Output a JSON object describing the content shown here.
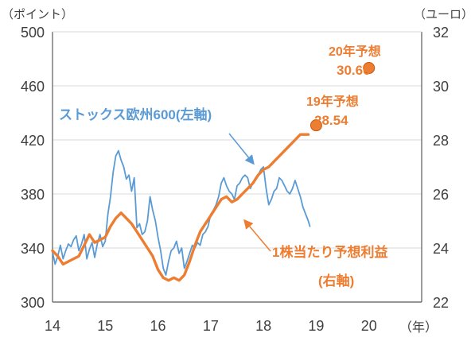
{
  "chart_data": {
    "type": "line",
    "left_unit": "（ポイント）",
    "right_unit": "（ユーロ）",
    "x_unit": "（年）",
    "x_ticks": [
      "14",
      "15",
      "16",
      "17",
      "18",
      "19",
      "20"
    ],
    "x_range": [
      2014,
      2021
    ],
    "y_left": {
      "range": [
        300,
        500
      ],
      "ticks": [
        "300",
        "340",
        "380",
        "420",
        "460",
        "500"
      ]
    },
    "y_right": {
      "range": [
        22,
        32
      ],
      "ticks": [
        "22",
        "24",
        "26",
        "28",
        "30",
        "32"
      ]
    },
    "grid": true,
    "colors": {
      "index": "#5b9bd5",
      "eps": "#ed7d31",
      "axis": "#595959",
      "grid": "#d9d9d9"
    },
    "series": [
      {
        "name": "ストックス欧州600(左軸)",
        "axis": "left",
        "x": [
          2014.0,
          2014.05,
          2014.1,
          2014.15,
          2014.2,
          2014.25,
          2014.3,
          2014.35,
          2014.4,
          2014.45,
          2014.5,
          2014.55,
          2014.6,
          2014.65,
          2014.7,
          2014.75,
          2014.8,
          2014.85,
          2014.9,
          2014.95,
          2015.0,
          2015.05,
          2015.1,
          2015.15,
          2015.2,
          2015.25,
          2015.3,
          2015.35,
          2015.4,
          2015.45,
          2015.5,
          2015.55,
          2015.6,
          2015.65,
          2015.7,
          2015.75,
          2015.8,
          2015.85,
          2015.9,
          2015.95,
          2016.0,
          2016.05,
          2016.1,
          2016.15,
          2016.2,
          2016.25,
          2016.3,
          2016.35,
          2016.4,
          2016.45,
          2016.5,
          2016.55,
          2016.6,
          2016.65,
          2016.7,
          2016.75,
          2016.8,
          2016.85,
          2016.9,
          2016.95,
          2017.0,
          2017.05,
          2017.1,
          2017.15,
          2017.2,
          2017.25,
          2017.3,
          2017.35,
          2017.4,
          2017.45,
          2017.5,
          2017.55,
          2017.6,
          2017.65,
          2017.7,
          2017.75,
          2017.8,
          2017.85,
          2017.9,
          2017.95,
          2018.0,
          2018.05,
          2018.1,
          2018.15,
          2018.2,
          2018.25,
          2018.3,
          2018.35,
          2018.4,
          2018.45,
          2018.5,
          2018.55,
          2018.6,
          2018.65,
          2018.7,
          2018.75,
          2018.8,
          2018.85,
          2018.88
        ],
        "values": [
          337,
          328,
          334,
          342,
          332,
          338,
          343,
          341,
          346,
          349,
          338,
          343,
          350,
          332,
          339,
          344,
          333,
          343,
          350,
          341,
          345,
          365,
          378,
          396,
          408,
          412,
          405,
          400,
          391,
          394,
          382,
          392,
          355,
          358,
          350,
          352,
          360,
          378,
          368,
          360,
          348,
          338,
          325,
          320,
          330,
          338,
          340,
          345,
          336,
          340,
          325,
          330,
          336,
          342,
          340,
          344,
          342,
          350,
          352,
          356,
          365,
          368,
          372,
          378,
          388,
          392,
          386,
          382,
          380,
          376,
          386,
          388,
          392,
          394,
          392,
          384,
          388,
          392,
          394,
          398,
          400,
          384,
          372,
          376,
          382,
          384,
          392,
          390,
          386,
          382,
          380,
          384,
          390,
          384,
          378,
          370,
          365,
          360,
          356
        ]
      },
      {
        "name": "1株当たり予想利益",
        "axis": "right",
        "x": [
          2014.0,
          2014.1,
          2014.2,
          2014.3,
          2014.4,
          2014.5,
          2014.6,
          2014.7,
          2014.8,
          2014.9,
          2015.0,
          2015.1,
          2015.2,
          2015.3,
          2015.4,
          2015.5,
          2015.6,
          2015.7,
          2015.8,
          2015.9,
          2016.0,
          2016.1,
          2016.2,
          2016.3,
          2016.4,
          2016.5,
          2016.6,
          2016.7,
          2016.8,
          2016.9,
          2017.0,
          2017.1,
          2017.2,
          2017.3,
          2017.4,
          2017.5,
          2017.6,
          2017.7,
          2017.8,
          2017.9,
          2018.0,
          2018.1,
          2018.2,
          2018.3,
          2018.4,
          2018.5,
          2018.6,
          2018.7,
          2018.8,
          2018.85
        ],
        "values": [
          23.9,
          23.7,
          23.4,
          23.5,
          23.6,
          23.7,
          24.1,
          24.5,
          24.2,
          24.3,
          24.4,
          24.8,
          25.1,
          25.3,
          25.1,
          24.9,
          24.6,
          24.3,
          24.0,
          23.7,
          23.2,
          22.9,
          22.8,
          22.9,
          22.8,
          23.0,
          23.5,
          24.1,
          24.6,
          24.9,
          25.2,
          25.5,
          25.8,
          25.9,
          25.7,
          25.8,
          26.0,
          26.2,
          26.4,
          26.7,
          26.9,
          27.0,
          27.2,
          27.4,
          27.6,
          27.8,
          28.0,
          28.2,
          28.2,
          28.2
        ]
      }
    ],
    "forecasts": [
      {
        "label": "19年予想",
        "value_text": "28.54",
        "x": 2019.0,
        "value": 28.54
      },
      {
        "label": "20年予想",
        "value_text": "30.66",
        "x": 2020.0,
        "value": 30.66
      }
    ],
    "annotations": {
      "index_label": "ストックス欧州600(左軸)",
      "eps_label_line1": "1株当たり予想利益",
      "eps_label_line2": "(右軸)"
    }
  }
}
